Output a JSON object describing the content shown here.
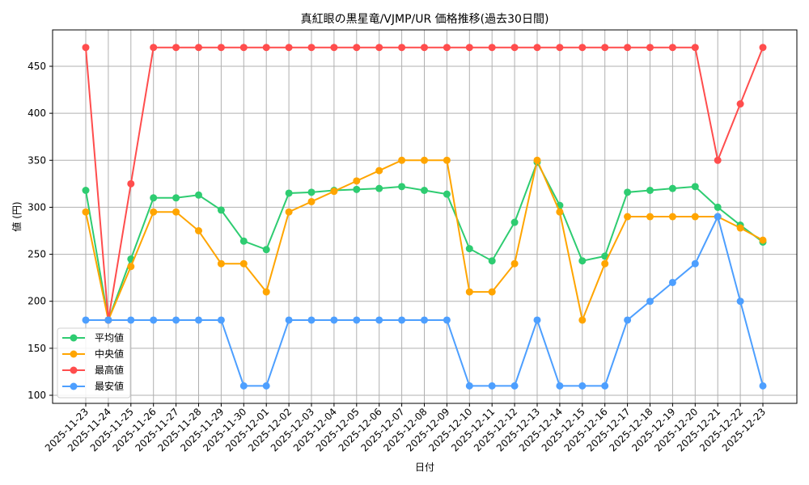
{
  "chart_data": {
    "type": "line",
    "title": "真紅眼の黒星竜/VJMP/UR 価格推移(過去30日間)",
    "xlabel": "日付",
    "ylabel": "値 (円)",
    "ylim": [
      93,
      484
    ],
    "yticks": [
      100,
      150,
      200,
      250,
      300,
      350,
      400,
      450
    ],
    "grid": true,
    "legend_position": "lower left",
    "x": [
      "2025-11-23",
      "2025-11-24",
      "2025-11-25",
      "2025-11-26",
      "2025-11-27",
      "2025-11-28",
      "2025-11-29",
      "2025-11-30",
      "2025-12-01",
      "2025-12-02",
      "2025-12-03",
      "2025-12-04",
      "2025-12-05",
      "2025-12-06",
      "2025-12-07",
      "2025-12-08",
      "2025-12-09",
      "2025-12-10",
      "2025-12-11",
      "2025-12-12",
      "2025-12-13",
      "2025-12-14",
      "2025-12-15",
      "2025-12-16",
      "2025-12-17",
      "2025-12-18",
      "2025-12-19",
      "2025-12-20",
      "2025-12-21",
      "2025-12-22",
      "2025-12-23"
    ],
    "series": [
      {
        "name": "平均値",
        "color": "#2ecc71",
        "values": [
          318,
          180,
          245,
          310,
          310,
          313,
          297,
          264,
          255,
          315,
          316,
          318,
          319,
          320,
          322,
          318,
          314,
          256,
          243,
          284,
          348,
          302,
          243,
          248,
          316,
          318,
          320,
          322,
          300,
          281,
          263
        ]
      },
      {
        "name": "中央値",
        "color": "#ffa500",
        "values": [
          295,
          180,
          237,
          295,
          295,
          275,
          240,
          240,
          210,
          295,
          306,
          317,
          328,
          339,
          350,
          350,
          350,
          210,
          210,
          240,
          350,
          295,
          180,
          240,
          290,
          290,
          290,
          290,
          290,
          278,
          265
        ]
      },
      {
        "name": "最高値",
        "color": "#ff4d4d",
        "values": [
          470,
          180,
          325,
          470,
          470,
          470,
          470,
          470,
          470,
          470,
          470,
          470,
          470,
          470,
          470,
          470,
          470,
          470,
          470,
          470,
          470,
          470,
          470,
          470,
          470,
          470,
          470,
          470,
          350,
          410,
          470
        ]
      },
      {
        "name": "最安値",
        "color": "#4d9fff",
        "values": [
          180,
          180,
          180,
          180,
          180,
          180,
          180,
          110,
          110,
          180,
          180,
          180,
          180,
          180,
          180,
          180,
          180,
          110,
          110,
          110,
          180,
          110,
          110,
          110,
          180,
          200,
          220,
          240,
          290,
          200,
          110
        ]
      }
    ]
  }
}
